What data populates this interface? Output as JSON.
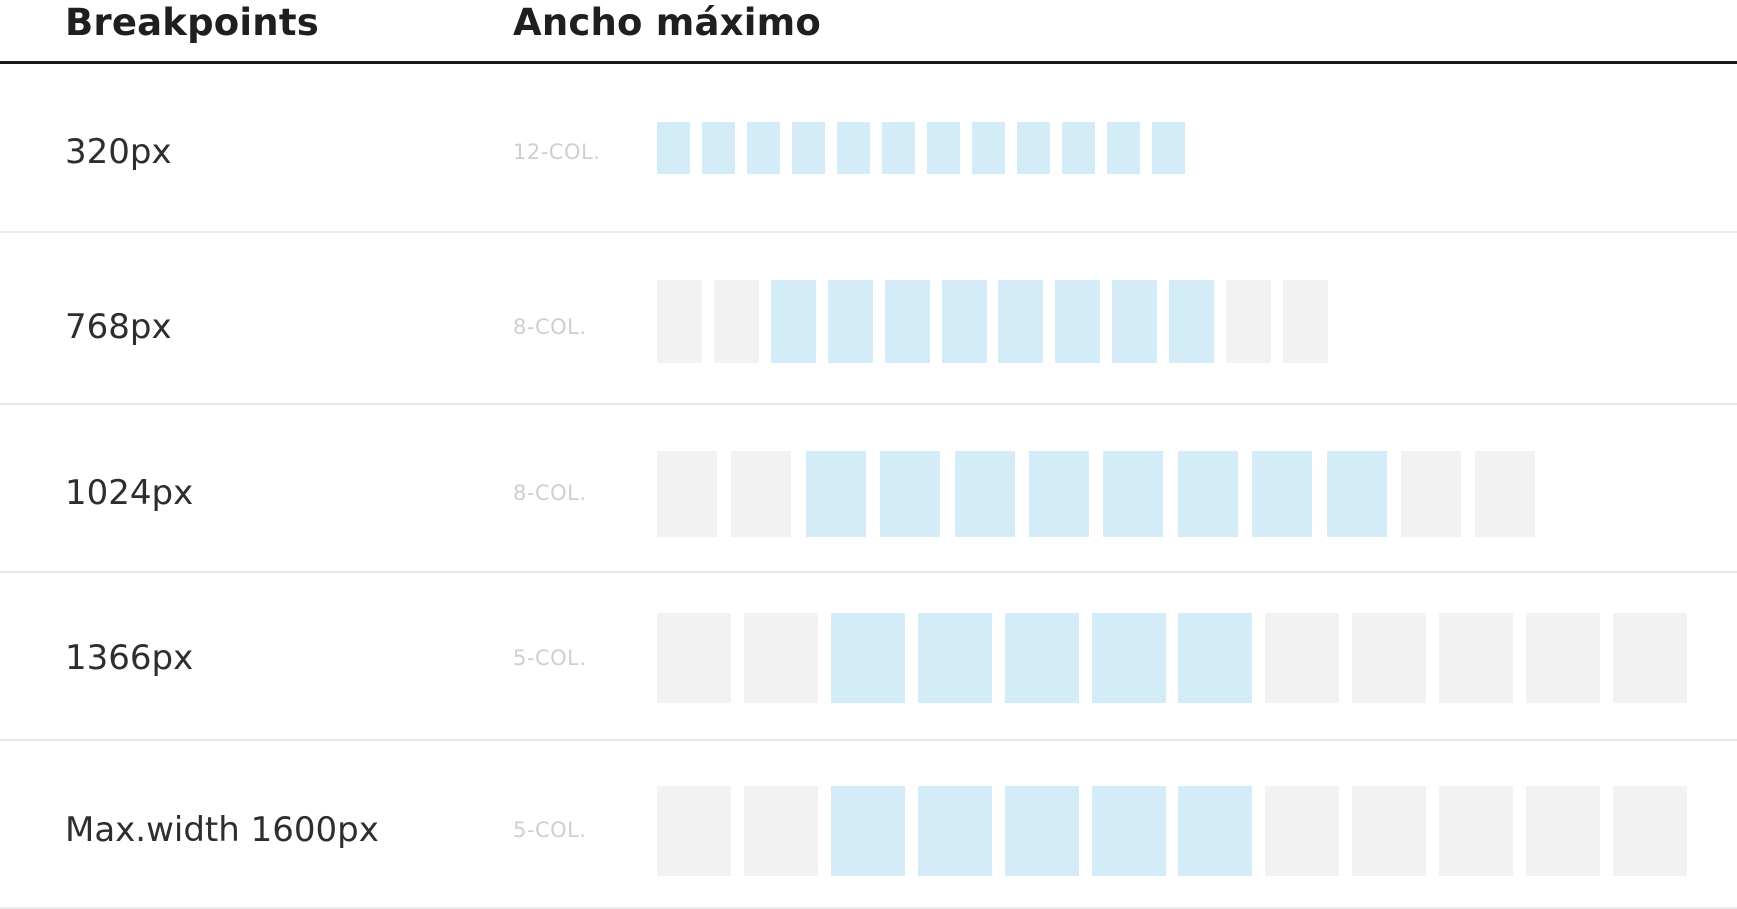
{
  "header": {
    "col1": "Breakpoints",
    "col2": "Ancho máximo"
  },
  "rows": [
    {
      "breakpoint": "320px",
      "columns_label": "12-COL.",
      "total_cells": 12,
      "active_from": 0,
      "active_count": 12
    },
    {
      "breakpoint": "768px",
      "columns_label": "8-COL.",
      "total_cells": 12,
      "active_from": 2,
      "active_count": 8
    },
    {
      "breakpoint": "1024px",
      "columns_label": "8-COL.",
      "total_cells": 12,
      "active_from": 2,
      "active_count": 8
    },
    {
      "breakpoint": "1366px",
      "columns_label": "5-COL.",
      "total_cells": 12,
      "active_from": 2,
      "active_count": 5
    },
    {
      "breakpoint": "Max.width 1600px",
      "columns_label": "5-COL.",
      "total_cells": 12,
      "active_from": 2,
      "active_count": 5
    }
  ],
  "colors": {
    "active_cell": "#d3ecf8",
    "inactive_cell": "#f2f2f2",
    "header_rule": "#1a1a1a",
    "row_divider": "#e9e9e9"
  }
}
